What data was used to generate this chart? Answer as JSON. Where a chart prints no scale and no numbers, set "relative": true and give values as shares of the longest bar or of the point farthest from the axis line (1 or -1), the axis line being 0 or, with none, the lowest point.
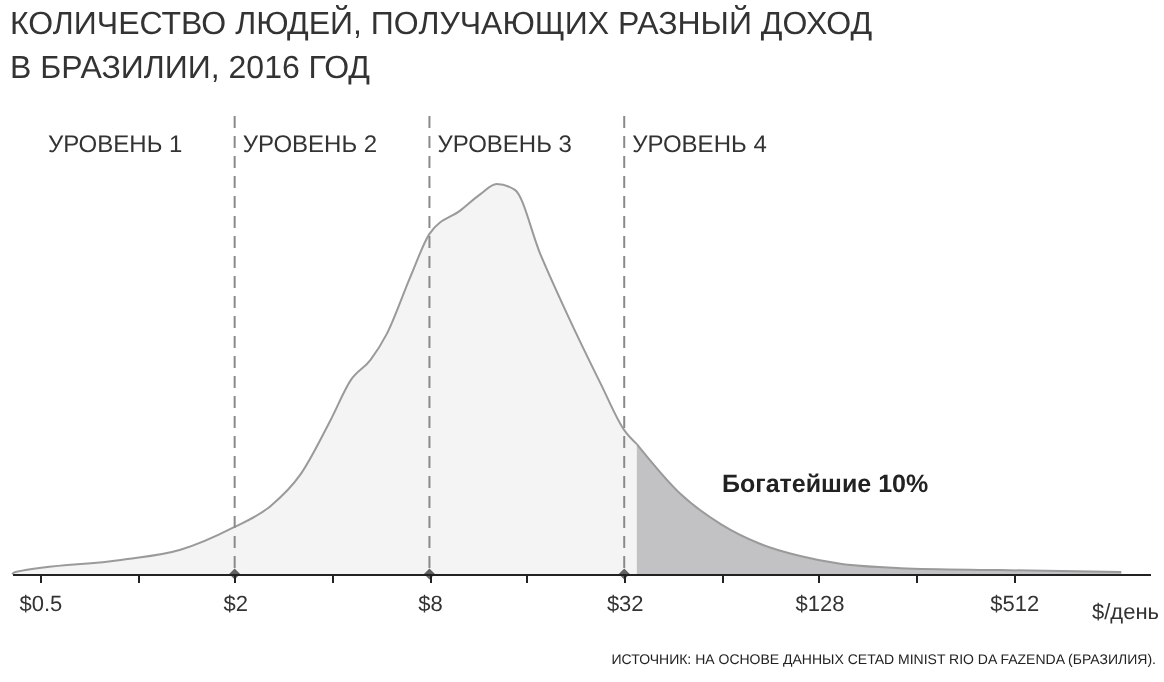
{
  "chart_data": {
    "type": "area",
    "title": "КОЛИЧЕСТВО ЛЮДЕЙ, ПОЛУЧАЮЩИХ РАЗНЫЙ ДОХОД\nВ БРАЗИЛИИ, 2016 ГОД",
    "xlabel": "$/день",
    "relative": true,
    "log": "x",
    "xlim": [
      0.41,
      1350
    ],
    "xticks": [
      {
        "value": 0.5,
        "label": "$0.5"
      },
      {
        "value": 1,
        "label": null
      },
      {
        "value": 2,
        "label": "$2"
      },
      {
        "value": 4,
        "label": null
      },
      {
        "value": 8,
        "label": "$8"
      },
      {
        "value": 16,
        "label": null
      },
      {
        "value": 32,
        "label": "$32"
      },
      {
        "value": 64,
        "label": null
      },
      {
        "value": 128,
        "label": "$128"
      },
      {
        "value": 256,
        "label": null
      },
      {
        "value": 512,
        "label": "$512"
      }
    ],
    "series": [
      {
        "color": "#efeff1",
        "x": [
          0.41,
          0.42,
          0.89,
          1.36,
          1.97,
          2.58,
          3.2,
          3.96,
          4.57,
          5.26,
          5.9,
          7.0,
          8.0,
          10.0,
          11.5,
          12.9,
          14.7,
          17.6,
          21.3,
          27.1,
          32,
          35
        ],
        "values": [
          0,
          0.005,
          0.036,
          0.062,
          0.118,
          0.174,
          0.256,
          0.395,
          0.497,
          0.549,
          0.615,
          0.764,
          0.872,
          0.933,
          0.974,
          1,
          0.985,
          0.821,
          0.667,
          0.487,
          0.369,
          0.333
        ]
      },
      {
        "color": "#a8a8ac",
        "x": [
          35,
          47.8,
          63.6,
          84.4,
          112,
          149,
          229,
          465,
          1100
        ],
        "values": [
          0.333,
          0.205,
          0.128,
          0.077,
          0.046,
          0.026,
          0.015,
          0.01,
          0.005
        ]
      }
    ],
    "ref_lines": [
      {
        "axis": "x",
        "value": 2,
        "line_style": "dashed"
      },
      {
        "axis": "x",
        "value": 8,
        "line_style": "dashed"
      },
      {
        "axis": "x",
        "value": 32,
        "line_style": "dashed"
      }
    ],
    "annotations": [
      "УРОВЕНЬ 1",
      "УРОВЕНЬ 2",
      "УРОВЕНЬ 3",
      "УРОВЕНЬ 4",
      "Богатейшие 10%",
      "ИСТОЧНИК: НА ОСНОВЕ ДАННЫХ CETAD MINIST RIO DA FAZENDA (БРАЗИЛИЯ)."
    ]
  }
}
